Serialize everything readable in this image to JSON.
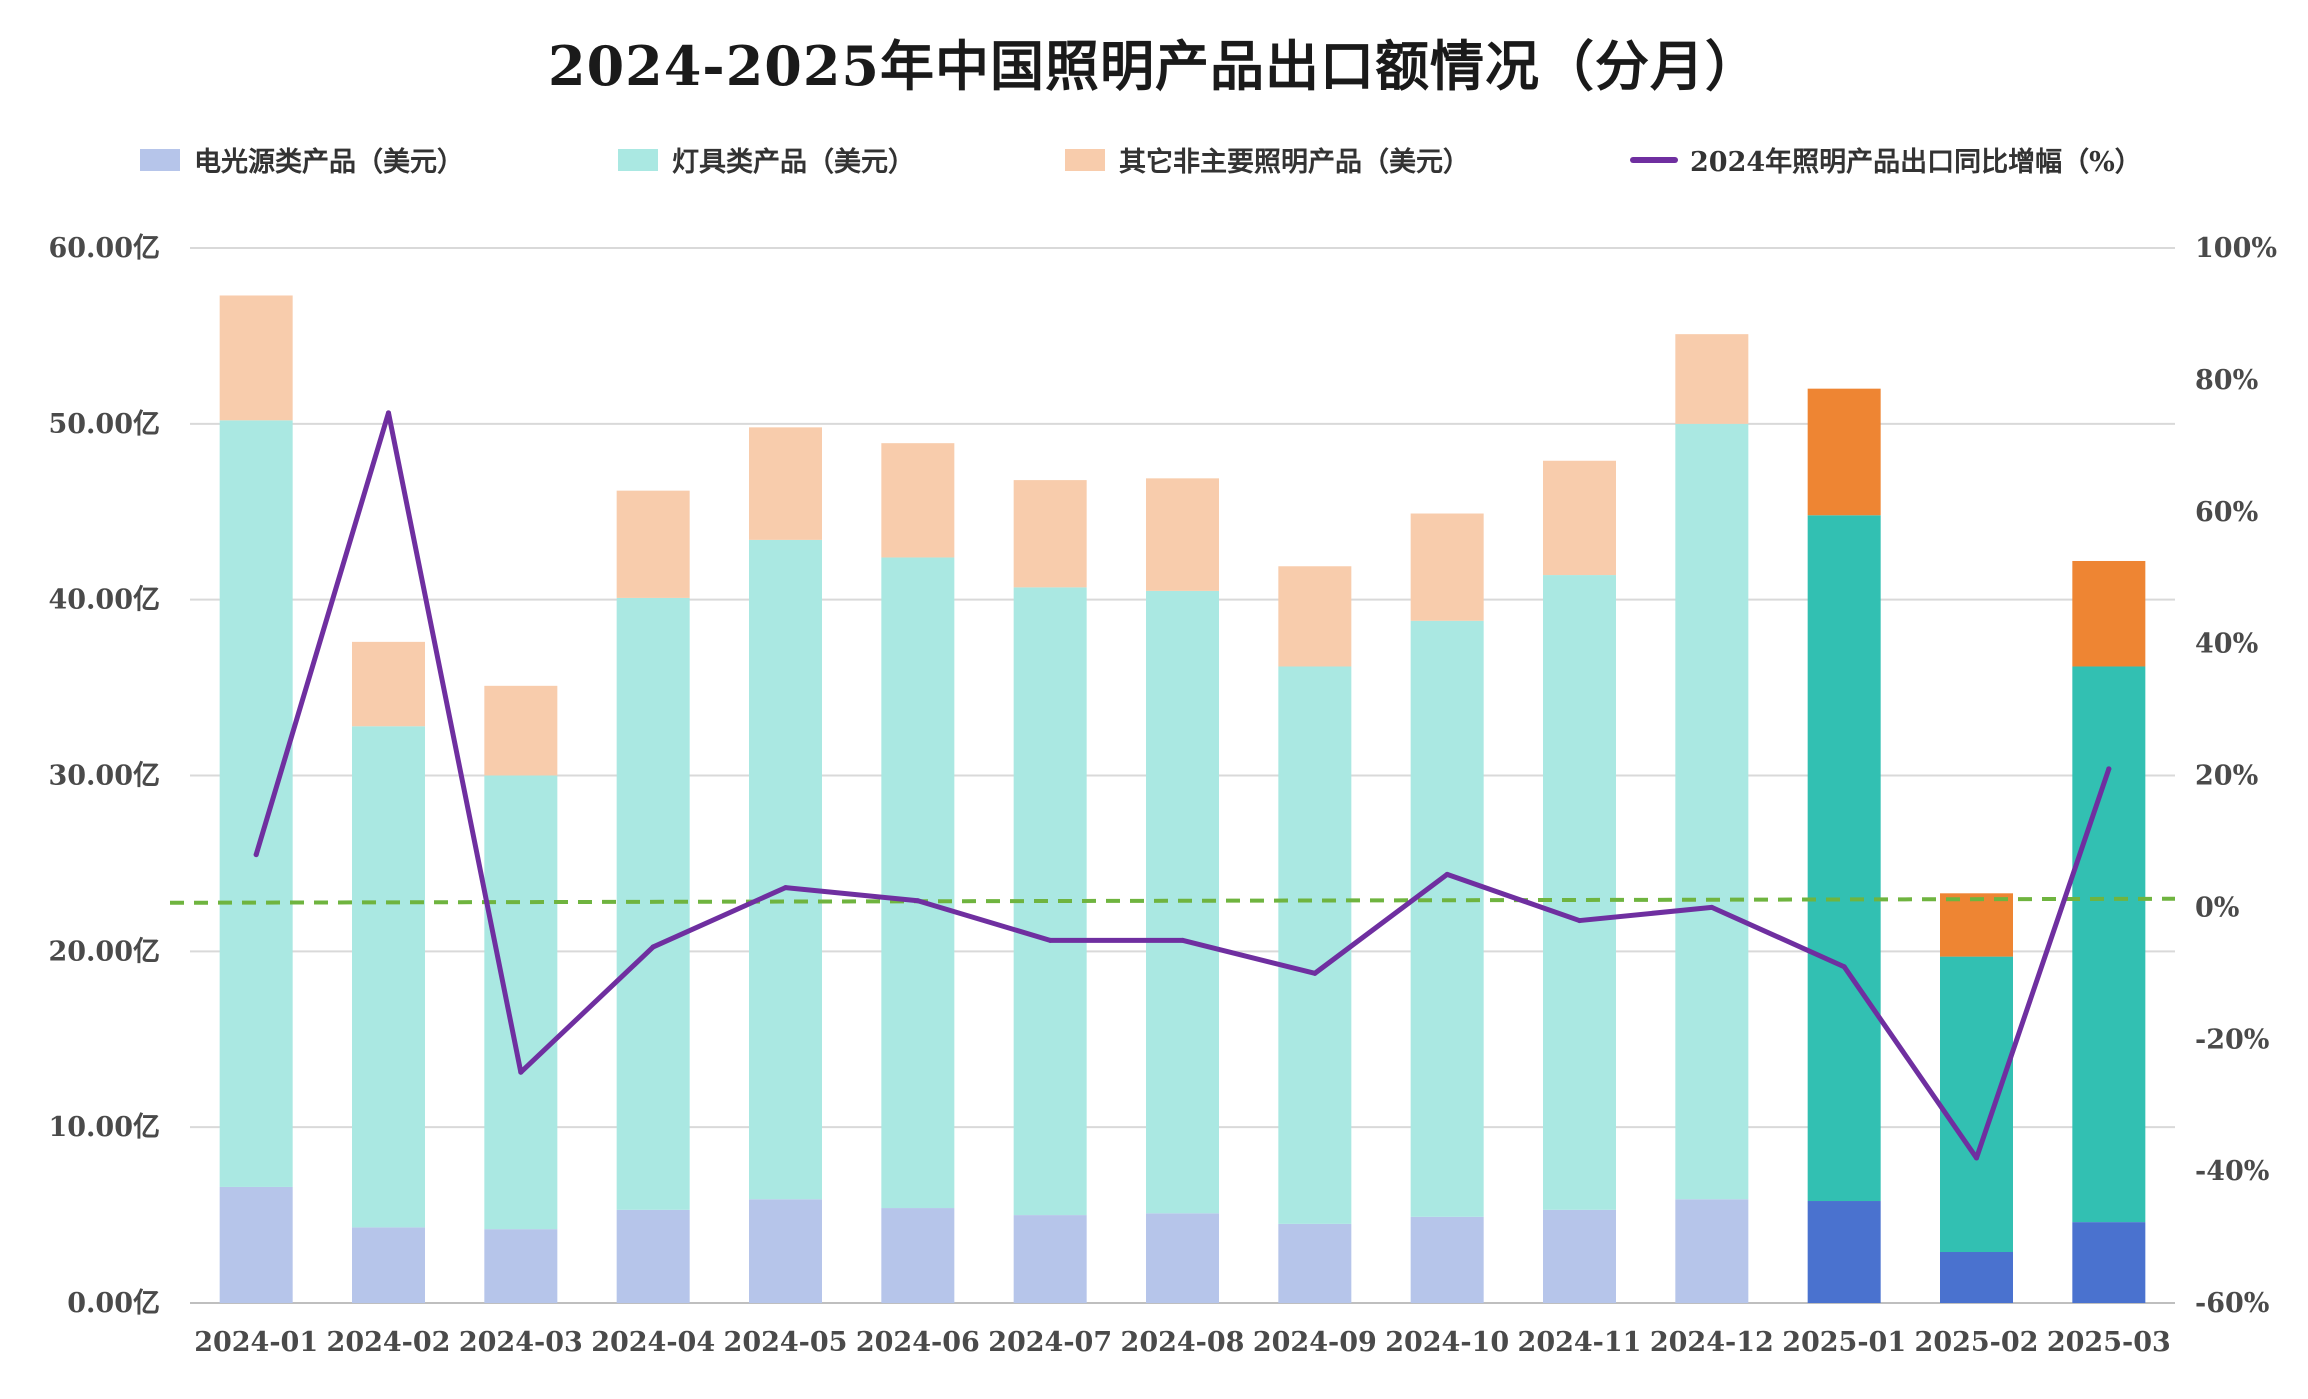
{
  "chart_data": {
    "type": "bar",
    "stacked": true,
    "title": "2024-2025年中国照明产品出口额情况（分月）",
    "categories": [
      "2024-01",
      "2024-02",
      "2024-03",
      "2024-04",
      "2024-05",
      "2024-06",
      "2024-07",
      "2024-08",
      "2024-09",
      "2024-10",
      "2024-11",
      "2024-12",
      "2025-01",
      "2025-02",
      "2025-03"
    ],
    "series": [
      {
        "name": "电光源类产品（美元）",
        "values": [
          6.6,
          4.3,
          4.2,
          5.3,
          5.9,
          5.4,
          5.0,
          5.1,
          4.5,
          4.9,
          5.3,
          5.9,
          5.8,
          2.9,
          4.6
        ],
        "color_2024": "#b6c5ea",
        "color_2025": "#4a72cf"
      },
      {
        "name": "灯具类产品（美元）",
        "values": [
          43.6,
          28.5,
          25.8,
          34.8,
          37.5,
          37.0,
          35.7,
          35.4,
          31.7,
          33.9,
          36.1,
          44.1,
          39.0,
          16.8,
          31.6
        ],
        "color_2024": "#aae8e2",
        "color_2025": "#32c0b2"
      },
      {
        "name": "其它非主要照明产品（美元）",
        "values": [
          7.1,
          4.8,
          5.1,
          6.1,
          6.4,
          6.5,
          6.1,
          6.4,
          5.7,
          6.1,
          6.5,
          5.1,
          7.2,
          3.6,
          6.0
        ],
        "color_2024": "#f8ccac",
        "color_2025": "#ee8533"
      }
    ],
    "line": {
      "name": "2024年照明产品出口同比增幅（%）",
      "values": [
        8,
        75,
        -25,
        -6,
        3,
        1,
        -5,
        -5,
        -10,
        5,
        -2,
        0,
        -9,
        -38,
        21
      ],
      "color": "#6f2fa0"
    },
    "reference_line": {
      "value": 1,
      "color": "#6fb43f",
      "dash": true
    },
    "y_left": {
      "min": 0,
      "max": 60,
      "ticks": [
        "0.00亿",
        "10.00亿",
        "20.00亿",
        "30.00亿",
        "40.00亿",
        "50.00亿",
        "60.00亿"
      ]
    },
    "y_right": {
      "min": -60,
      "max": 100,
      "ticks": [
        "-60%",
        "-40%",
        "-20%",
        "0%",
        "20%",
        "40%",
        "60%",
        "80%",
        "100%"
      ]
    },
    "grid": true,
    "legend_position": "top"
  }
}
